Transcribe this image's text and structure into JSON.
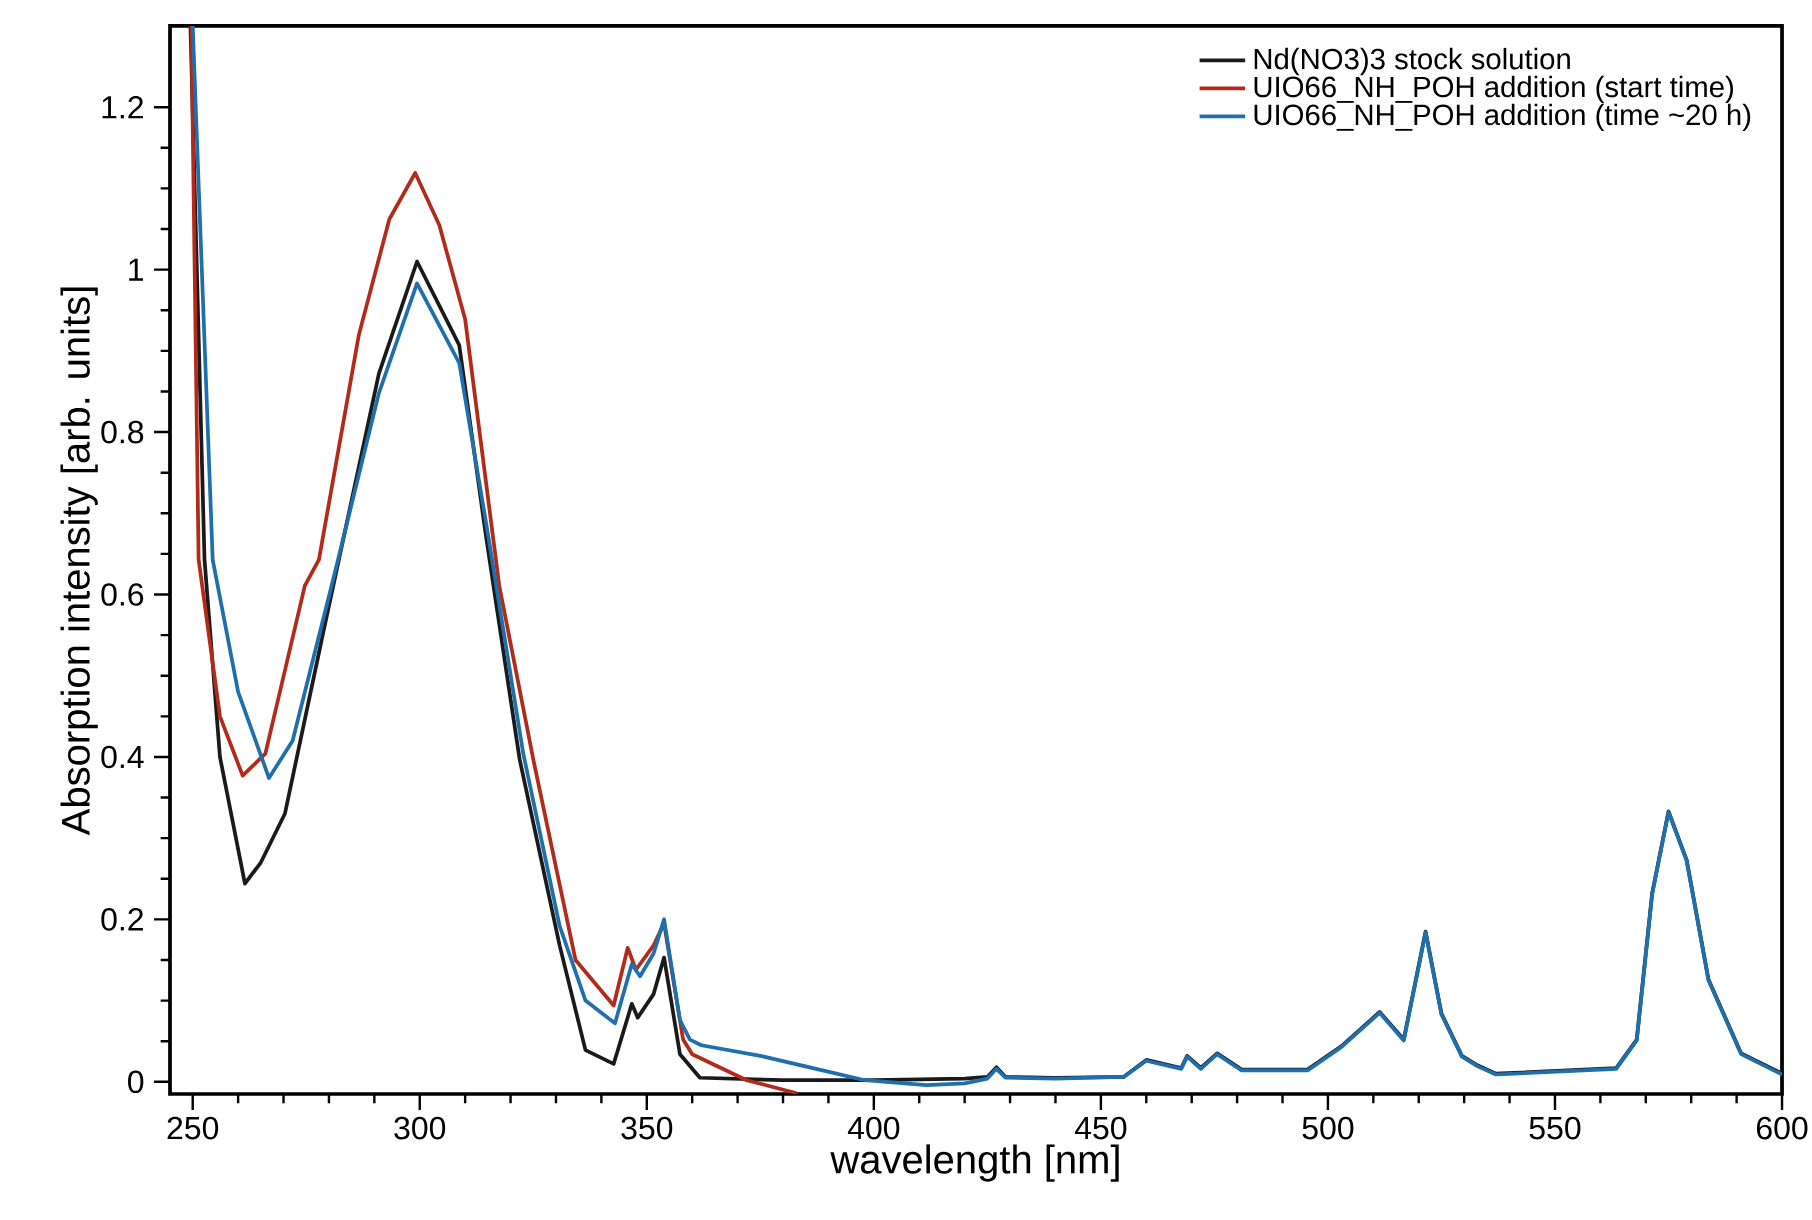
{
  "chart_data": {
    "type": "line",
    "xlabel": "wavelength [nm]",
    "ylabel": "Absorption intensity [arb. units]",
    "xlim": [
      245,
      600
    ],
    "ylim": [
      -0.015,
      1.3
    ],
    "xticks": [
      250,
      300,
      350,
      400,
      450,
      500,
      550,
      600
    ],
    "yticks": [
      0,
      0.2,
      0.4,
      0.6,
      0.8,
      1,
      1.2
    ],
    "grid": false,
    "legend": "top right",
    "line_style": "solid",
    "marker": "none",
    "series": [
      {
        "name": "Nd(NO3)3 stock solution",
        "color": "#1a1a1a",
        "x": [
          249.5,
          252.6,
          256,
          261.5,
          265,
          270.3,
          279,
          291,
          299.4,
          308.7,
          314.5,
          322,
          330.8,
          336.5,
          342.7,
          346.7,
          348,
          351.5,
          353.8,
          357.3,
          361.7,
          380,
          400,
          420,
          425,
          427,
          429,
          440,
          455,
          460,
          467.7,
          469,
          472,
          475.6,
          481,
          495.5,
          503,
          511.4,
          516.7,
          521.5,
          525,
          529.5,
          533,
          537,
          563.5,
          568,
          571.4,
          575,
          579,
          583.8,
          591,
          600
        ],
        "values": [
          1.3,
          0.643,
          0.4,
          0.244,
          0.27,
          0.33,
          0.56,
          0.872,
          1.01,
          0.907,
          0.675,
          0.397,
          0.168,
          0.039,
          0.022,
          0.096,
          0.079,
          0.108,
          0.153,
          0.034,
          0.005,
          0.002,
          0.002,
          0.004,
          0.006,
          0.018,
          0.006,
          0.005,
          0.006,
          0.027,
          0.017,
          0.032,
          0.017,
          0.035,
          0.015,
          0.015,
          0.044,
          0.086,
          0.052,
          0.185,
          0.084,
          0.032,
          0.02,
          0.01,
          0.017,
          0.052,
          0.232,
          0.333,
          0.273,
          0.126,
          0.035,
          0.01
        ]
      },
      {
        "name": "UIO66_NH_POH addition (start time)",
        "color": "#b22a1a",
        "x": [
          249.7,
          251.3,
          256,
          261,
          266,
          274.7,
          277.8,
          286.6,
          293.3,
          299,
          304.3,
          310,
          317.5,
          325,
          334.3,
          342.7,
          345.8,
          347.6,
          351.5,
          353.8,
          358,
          360,
          372,
          383
        ],
        "values": [
          1.3,
          0.643,
          0.45,
          0.377,
          0.404,
          0.611,
          0.643,
          0.92,
          1.062,
          1.119,
          1.055,
          0.939,
          0.611,
          0.397,
          0.15,
          0.094,
          0.165,
          0.138,
          0.168,
          0.195,
          0.052,
          0.034,
          0.002,
          -0.014
        ]
      },
      {
        "name": "UIO66_NH_POH addition (time ~20 h)",
        "color": "#1f6fad",
        "x": [
          250,
          254.4,
          260,
          266.8,
          272,
          281,
          291,
          299.4,
          308.7,
          315,
          322.8,
          330.8,
          336.5,
          343,
          346.7,
          348.5,
          351.5,
          353.8,
          357.3,
          359.5,
          362,
          375,
          388,
          398,
          411.6,
          420,
          425,
          427,
          429,
          440,
          455,
          460,
          467.7,
          469,
          472,
          475.6,
          481,
          495.5,
          503,
          511.4,
          516.7,
          521.5,
          525,
          529.5,
          533,
          537,
          563.5,
          568,
          571.4,
          575,
          579,
          583.8,
          591,
          600
        ],
        "values": [
          1.3,
          0.643,
          0.48,
          0.374,
          0.42,
          0.62,
          0.848,
          0.983,
          0.885,
          0.675,
          0.404,
          0.192,
          0.1,
          0.072,
          0.145,
          0.13,
          0.158,
          0.2,
          0.076,
          0.052,
          0.045,
          0.032,
          0.015,
          0.002,
          -0.004,
          -0.002,
          0.004,
          0.016,
          0.005,
          0.004,
          0.006,
          0.026,
          0.016,
          0.031,
          0.016,
          0.034,
          0.014,
          0.014,
          0.043,
          0.085,
          0.051,
          0.184,
          0.083,
          0.031,
          0.019,
          0.009,
          0.016,
          0.051,
          0.231,
          0.332,
          0.272,
          0.125,
          0.034,
          0.009
        ]
      }
    ]
  }
}
